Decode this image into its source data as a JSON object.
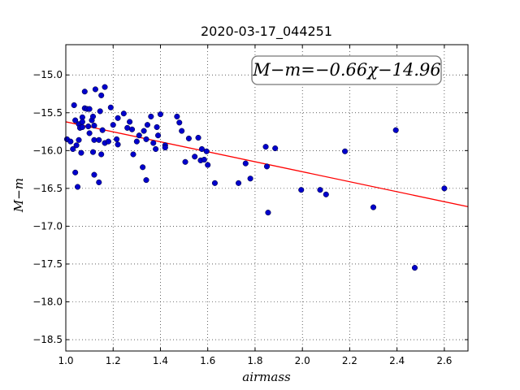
{
  "chart_data": {
    "type": "scatter",
    "title": "2020-03-17_044251",
    "xlabel": "airmass",
    "ylabel": "M−m",
    "annotation": "M−m=−0.66χ−14.96",
    "xlim": [
      1.0,
      2.7
    ],
    "ylim": [
      -18.65,
      -14.6
    ],
    "y_inverted": true,
    "grid": true,
    "xticks": [
      1.0,
      1.2,
      1.4,
      1.6,
      1.8,
      2.0,
      2.2,
      2.4,
      2.6
    ],
    "xtick_labels": [
      "1.0",
      "1.2",
      "1.4",
      "1.6",
      "1.8",
      "2.0",
      "2.2",
      "2.4",
      "2.6"
    ],
    "yticks": [
      -15.0,
      -15.5,
      -16.0,
      -16.5,
      -17.0,
      -17.5,
      -18.0,
      -18.5
    ],
    "ytick_labels": [
      "−15.0",
      "−15.5",
      "−16.0",
      "−16.5",
      "−17.0",
      "−17.5",
      "−18.0",
      "−18.5"
    ],
    "fit": {
      "slope": -0.66,
      "intercept": -14.96,
      "color": "#ff0000"
    },
    "point_color": "#0000cc",
    "points": [
      [
        1.005,
        -15.85
      ],
      [
        1.02,
        -15.88
      ],
      [
        1.03,
        -15.98
      ],
      [
        1.035,
        -15.4
      ],
      [
        1.04,
        -15.6
      ],
      [
        1.04,
        -16.29
      ],
      [
        1.045,
        -15.93
      ],
      [
        1.05,
        -16.48
      ],
      [
        1.055,
        -15.86
      ],
      [
        1.055,
        -15.65
      ],
      [
        1.06,
        -15.7
      ],
      [
        1.065,
        -16.03
      ],
      [
        1.07,
        -15.56
      ],
      [
        1.07,
        -15.62
      ],
      [
        1.07,
        -15.69
      ],
      [
        1.08,
        -15.22
      ],
      [
        1.08,
        -15.44
      ],
      [
        1.09,
        -15.45
      ],
      [
        1.095,
        -15.68
      ],
      [
        1.1,
        -15.77
      ],
      [
        1.1,
        -15.45
      ],
      [
        1.11,
        -15.6
      ],
      [
        1.115,
        -15.55
      ],
      [
        1.115,
        -16.02
      ],
      [
        1.12,
        -15.67
      ],
      [
        1.12,
        -15.86
      ],
      [
        1.12,
        -16.32
      ],
      [
        1.125,
        -15.19
      ],
      [
        1.14,
        -16.42
      ],
      [
        1.14,
        -15.86
      ],
      [
        1.145,
        -15.48
      ],
      [
        1.15,
        -16.05
      ],
      [
        1.15,
        -15.27
      ],
      [
        1.155,
        -15.73
      ],
      [
        1.165,
        -15.16
      ],
      [
        1.165,
        -15.9
      ],
      [
        1.18,
        -15.88
      ],
      [
        1.19,
        -15.43
      ],
      [
        1.2,
        -15.66
      ],
      [
        1.215,
        -15.85
      ],
      [
        1.22,
        -15.92
      ],
      [
        1.22,
        -15.57
      ],
      [
        1.245,
        -15.51
      ],
      [
        1.26,
        -15.7
      ],
      [
        1.27,
        -15.62
      ],
      [
        1.28,
        -15.72
      ],
      [
        1.285,
        -16.05
      ],
      [
        1.3,
        -15.88
      ],
      [
        1.31,
        -15.8
      ],
      [
        1.325,
        -16.22
      ],
      [
        1.33,
        -15.74
      ],
      [
        1.34,
        -16.39
      ],
      [
        1.34,
        -15.85
      ],
      [
        1.345,
        -15.66
      ],
      [
        1.36,
        -15.55
      ],
      [
        1.37,
        -15.9
      ],
      [
        1.38,
        -15.98
      ],
      [
        1.385,
        -15.69
      ],
      [
        1.39,
        -15.8
      ],
      [
        1.4,
        -15.52
      ],
      [
        1.42,
        -15.93
      ],
      [
        1.42,
        -15.96
      ],
      [
        1.47,
        -15.55
      ],
      [
        1.48,
        -15.63
      ],
      [
        1.49,
        -15.74
      ],
      [
        1.505,
        -16.15
      ],
      [
        1.52,
        -15.84
      ],
      [
        1.545,
        -16.08
      ],
      [
        1.56,
        -15.83
      ],
      [
        1.57,
        -16.13
      ],
      [
        1.575,
        -15.98
      ],
      [
        1.585,
        -16.12
      ],
      [
        1.595,
        -16.01
      ],
      [
        1.6,
        -16.19
      ],
      [
        1.63,
        -16.43
      ],
      [
        1.73,
        -16.43
      ],
      [
        1.76,
        -16.17
      ],
      [
        1.78,
        -16.37
      ],
      [
        1.845,
        -15.95
      ],
      [
        1.85,
        -16.21
      ],
      [
        1.855,
        -16.82
      ],
      [
        1.885,
        -15.97
      ],
      [
        1.995,
        -16.52
      ],
      [
        2.075,
        -16.52
      ],
      [
        2.1,
        -16.58
      ],
      [
        2.18,
        -16.01
      ],
      [
        2.3,
        -16.75
      ],
      [
        2.395,
        -15.73
      ],
      [
        2.475,
        -17.55
      ],
      [
        2.6,
        -16.5
      ]
    ]
  }
}
